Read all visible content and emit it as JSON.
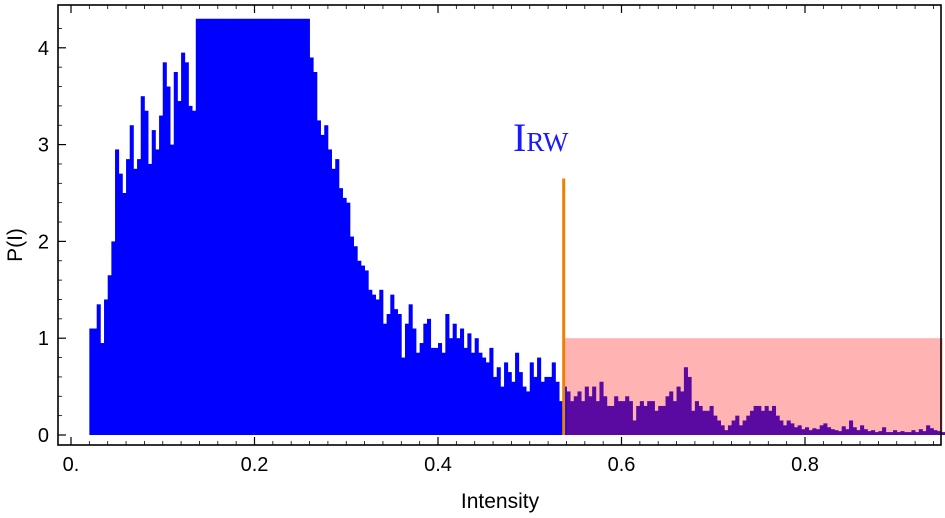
{
  "chart_data": {
    "type": "bar",
    "xlabel": "Intensity",
    "ylabel": "P(I)",
    "xlim": [
      0.0,
      0.96
    ],
    "ylim": [
      0.0,
      4.35
    ],
    "x_ticks": [
      {
        "value": 0.0,
        "label": "0."
      },
      {
        "value": 0.2,
        "label": "0.2"
      },
      {
        "value": 0.4,
        "label": "0.4"
      },
      {
        "value": 0.6,
        "label": "0.6"
      },
      {
        "value": 0.8,
        "label": "0.8"
      }
    ],
    "y_ticks": [
      0,
      1,
      2,
      3,
      4
    ],
    "grid": false,
    "bar_color": "#0000ff",
    "overlap_bar_color": "#5a0aa0",
    "bin_width": 0.004,
    "bins_start": 0.02,
    "values": [
      1.1,
      1.1,
      1.35,
      0.95,
      1.4,
      1.65,
      2.0,
      2.95,
      2.7,
      2.5,
      2.85,
      3.2,
      2.75,
      2.85,
      3.5,
      3.35,
      2.8,
      3.15,
      2.95,
      3.3,
      3.85,
      3.6,
      3.0,
      3.75,
      3.45,
      3.95,
      3.85,
      3.4,
      3.35,
      4.3,
      4.3,
      4.3,
      4.3,
      4.3,
      4.3,
      4.3,
      4.3,
      4.3,
      4.3,
      4.3,
      4.3,
      4.3,
      4.3,
      4.3,
      4.3,
      4.3,
      4.3,
      4.3,
      4.3,
      4.3,
      4.3,
      4.3,
      4.3,
      4.3,
      4.3,
      4.3,
      4.3,
      4.3,
      4.3,
      4.3,
      3.9,
      3.75,
      3.25,
      3.1,
      3.2,
      2.95,
      2.75,
      2.85,
      2.55,
      2.45,
      2.4,
      2.05,
      1.95,
      1.8,
      1.75,
      1.7,
      1.5,
      1.45,
      1.4,
      1.5,
      1.15,
      1.25,
      1.45,
      1.3,
      1.25,
      0.8,
      1.15,
      1.35,
      1.1,
      0.85,
      0.95,
      1.15,
      1.2,
      0.9,
      0.9,
      0.95,
      0.85,
      1.25,
      1.0,
      1.15,
      1.0,
      1.1,
      0.9,
      1.05,
      0.85,
      1.0,
      0.85,
      0.8,
      0.75,
      0.9,
      0.6,
      0.7,
      0.5,
      0.75,
      0.65,
      0.55,
      0.85,
      0.65,
      0.5,
      0.45,
      0.75,
      0.6,
      0.8,
      0.55,
      0.6,
      0.6,
      0.75,
      0.55,
      0.35,
      0.5,
      0.45,
      0.35,
      0.4,
      0.45,
      0.35,
      0.5,
      0.4,
      0.5,
      0.35,
      0.55,
      0.4,
      0.3,
      0.3,
      0.4,
      0.35,
      0.35,
      0.4,
      0.35,
      0.15,
      0.3,
      0.35,
      0.3,
      0.35,
      0.35,
      0.25,
      0.3,
      0.3,
      0.4,
      0.45,
      0.35,
      0.5,
      0.45,
      0.7,
      0.6,
      0.25,
      0.35,
      0.3,
      0.25,
      0.25,
      0.3,
      0.2,
      0.15,
      0.1,
      0.05,
      0.1,
      0.15,
      0.2,
      0.1,
      0.15,
      0.2,
      0.25,
      0.3,
      0.3,
      0.25,
      0.3,
      0.25,
      0.3,
      0.2,
      0.15,
      0.1,
      0.15,
      0.12,
      0.08,
      0.1,
      0.06,
      0.08,
      0.05,
      0.07,
      0.06,
      0.1,
      0.12,
      0.08,
      0.06,
      0.05,
      0.04,
      0.09,
      0.06,
      0.15,
      0.08,
      0.05,
      0.1,
      0.06,
      0.04,
      0.05,
      0.03,
      0.04,
      0.08,
      0.03,
      0.03,
      0.05,
      0.03,
      0.04,
      0.03,
      0.03,
      0.05,
      0.03,
      0.06,
      0.04,
      0.1,
      0.07,
      0.05,
      0.04,
      0.03,
      0.03,
      0.05,
      0.04,
      0.03,
      0.04,
      0.05,
      0.06,
      0.08,
      0.12,
      0.05,
      0.04,
      0.1,
      0.05,
      0.03,
      0.04,
      0.03,
      0.05,
      0.03,
      0.03,
      0.04,
      0.03,
      0.02,
      0.03,
      0.04,
      0,
      0.03,
      0.03,
      0.02,
      0,
      0.02,
      0.02,
      0,
      0.02,
      0.03,
      0.02,
      0,
      0,
      0.03,
      0.02,
      0,
      0,
      0.02,
      0.04,
      0.02,
      0,
      0,
      0.02,
      0.03,
      0.03,
      0.02,
      0,
      0,
      0,
      0,
      0,
      0,
      0,
      0,
      0,
      0,
      0,
      0,
      0,
      0,
      0.02,
      0.02,
      0,
      0.02,
      0.02,
      0,
      0.02,
      0,
      0.02,
      0.02,
      0.02,
      0,
      0,
      0,
      0,
      0.02,
      0,
      0.02,
      0.02,
      0,
      0,
      0.02,
      0.02
    ],
    "threshold": {
      "x": 0.537,
      "y_top": 2.65,
      "label_main": "I",
      "label_sub": "RW",
      "color": "#f08000"
    },
    "highlight_region": {
      "x0": 0.537,
      "x1": 0.95,
      "y0": 0.0,
      "y1": 1.0,
      "color": "#ffb3b3"
    }
  }
}
